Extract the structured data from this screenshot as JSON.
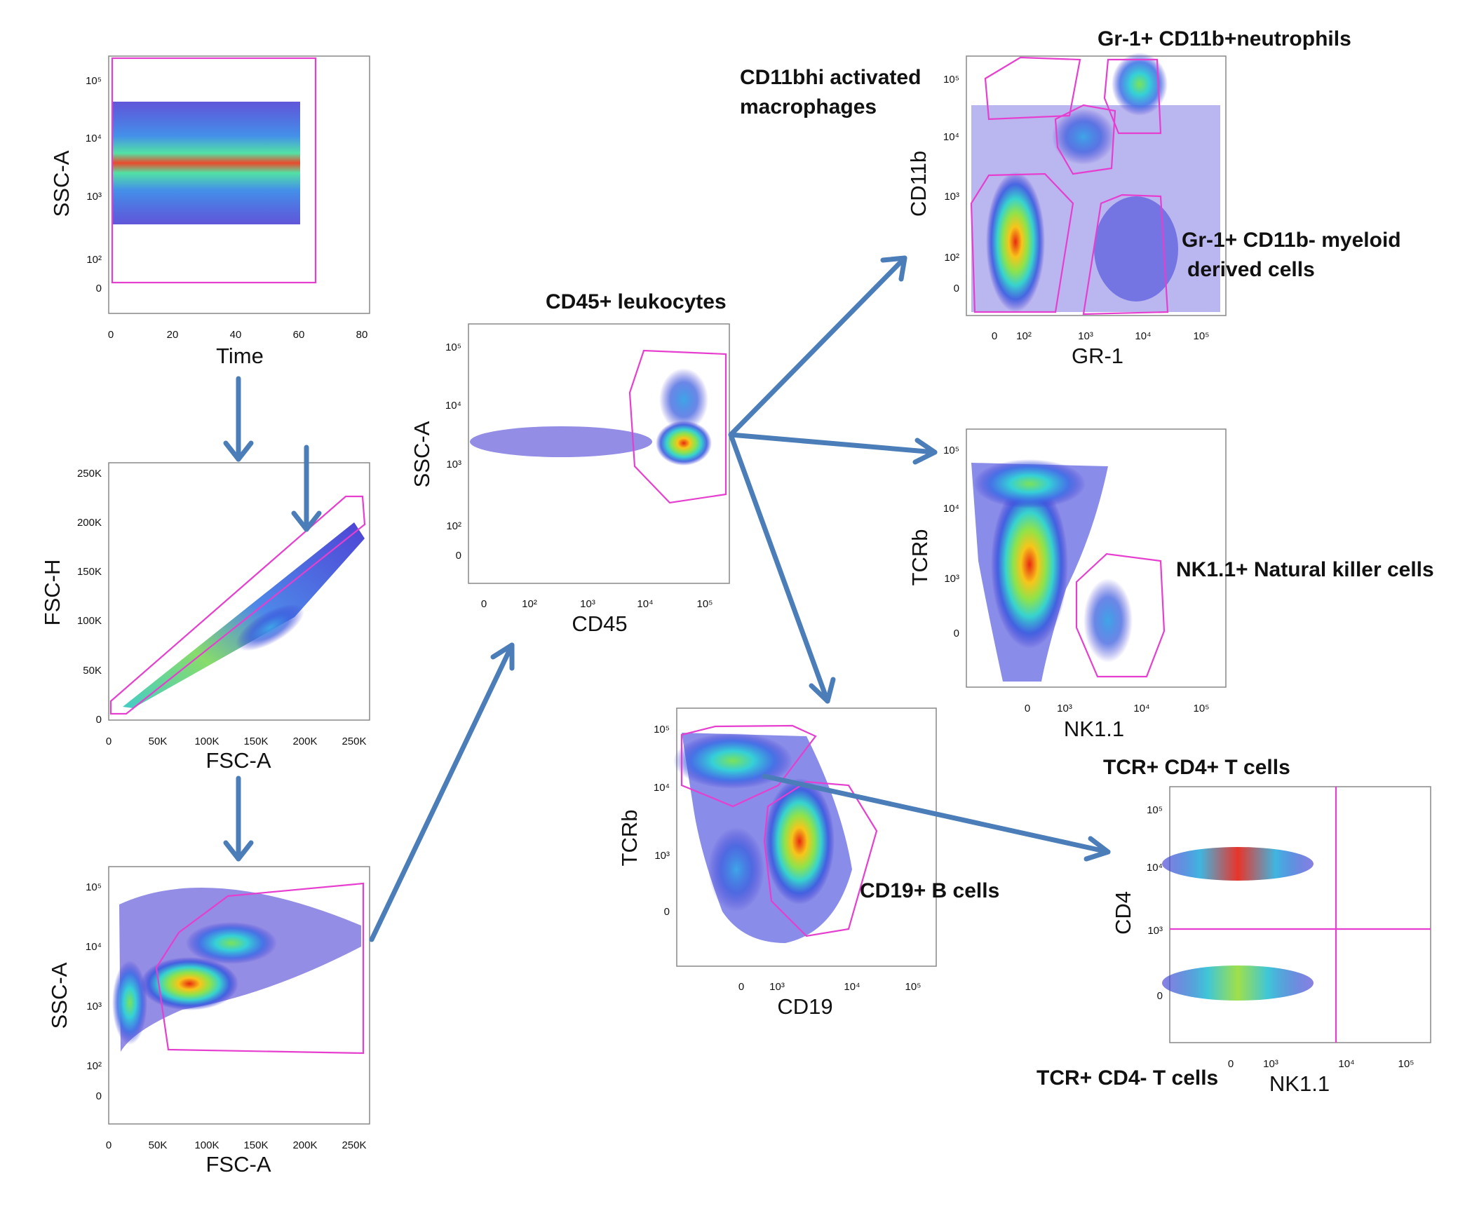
{
  "colors": {
    "gate": "#e63fcf",
    "arrow": "#4b7db8",
    "density_low": "#3a2fd0",
    "density_mid": "#3fd6e0",
    "density_high": "#e82a10"
  },
  "plots": {
    "time_ssc": {
      "x_label": "Time",
      "y_label": "SSC-A",
      "x_ticks": [
        "0",
        "20",
        "40",
        "60",
        "80"
      ],
      "y_ticks": [
        "10⁵",
        "10⁴",
        "10³",
        "10²",
        "0"
      ]
    },
    "fsca_fsch": {
      "x_label": "FSC-A",
      "y_label": "FSC-H",
      "x_ticks": [
        "0",
        "50K",
        "100K",
        "150K",
        "200K",
        "250K"
      ],
      "y_ticks": [
        "250K",
        "200K",
        "150K",
        "100K",
        "50K",
        "0"
      ]
    },
    "fsca_ssca": {
      "x_label": "FSC-A",
      "y_label": "SSC-A",
      "x_ticks": [
        "0",
        "50K",
        "100K",
        "150K",
        "200K",
        "250K"
      ],
      "y_ticks": [
        "10⁵",
        "10⁴",
        "10³",
        "10²",
        "0"
      ]
    },
    "cd45": {
      "title": "CD45+ leukocytes",
      "x_label": "CD45",
      "y_label": "SSC-A",
      "x_ticks": [
        "0",
        "10²",
        "10³",
        "10⁴",
        "10⁵"
      ],
      "y_ticks": [
        "10⁵",
        "10⁴",
        "10³",
        "10²",
        "0"
      ]
    },
    "gr1_cd11b": {
      "x_label": "GR-1",
      "y_label": "CD11b",
      "x_ticks": [
        "0",
        "10²",
        "10³",
        "10⁴",
        "10⁵"
      ],
      "y_ticks": [
        "10⁵",
        "10⁴",
        "10³",
        "10²",
        "0"
      ]
    },
    "nk_tcrb": {
      "x_label": "NK1.1",
      "y_label": "TCRb",
      "x_ticks": [
        "0",
        "10³",
        "10⁴",
        "10⁵"
      ],
      "y_ticks": [
        "10⁵",
        "10⁴",
        "10³",
        "0"
      ]
    },
    "cd19_tcrb": {
      "x_label": "CD19",
      "y_label": "TCRb",
      "x_ticks": [
        "0",
        "10³",
        "10⁴",
        "10⁵"
      ],
      "y_ticks": [
        "10⁵",
        "10⁴",
        "10³",
        "0"
      ]
    },
    "nk_cd4": {
      "x_label": "NK1.1",
      "y_label": "CD4",
      "x_ticks": [
        "0",
        "10³",
        "10⁴",
        "10⁵"
      ],
      "y_ticks": [
        "10⁵",
        "10⁴",
        "10³",
        "0"
      ]
    }
  },
  "labels": {
    "neutrophils": "Gr-1+ CD11b+neutrophils",
    "macrophages_line1": "CD11bhi activated",
    "macrophages_line2": "macrophages",
    "myeloid_line1": "Gr-1+ CD11b- myeloid",
    "myeloid_line2": "derived cells",
    "nk_cells": "NK1.1+ Natural killer cells",
    "b_cells": "CD19+ B cells",
    "cd4_t": "TCR+ CD4+ T cells",
    "cd4neg_t": "TCR+ CD4- T cells"
  }
}
